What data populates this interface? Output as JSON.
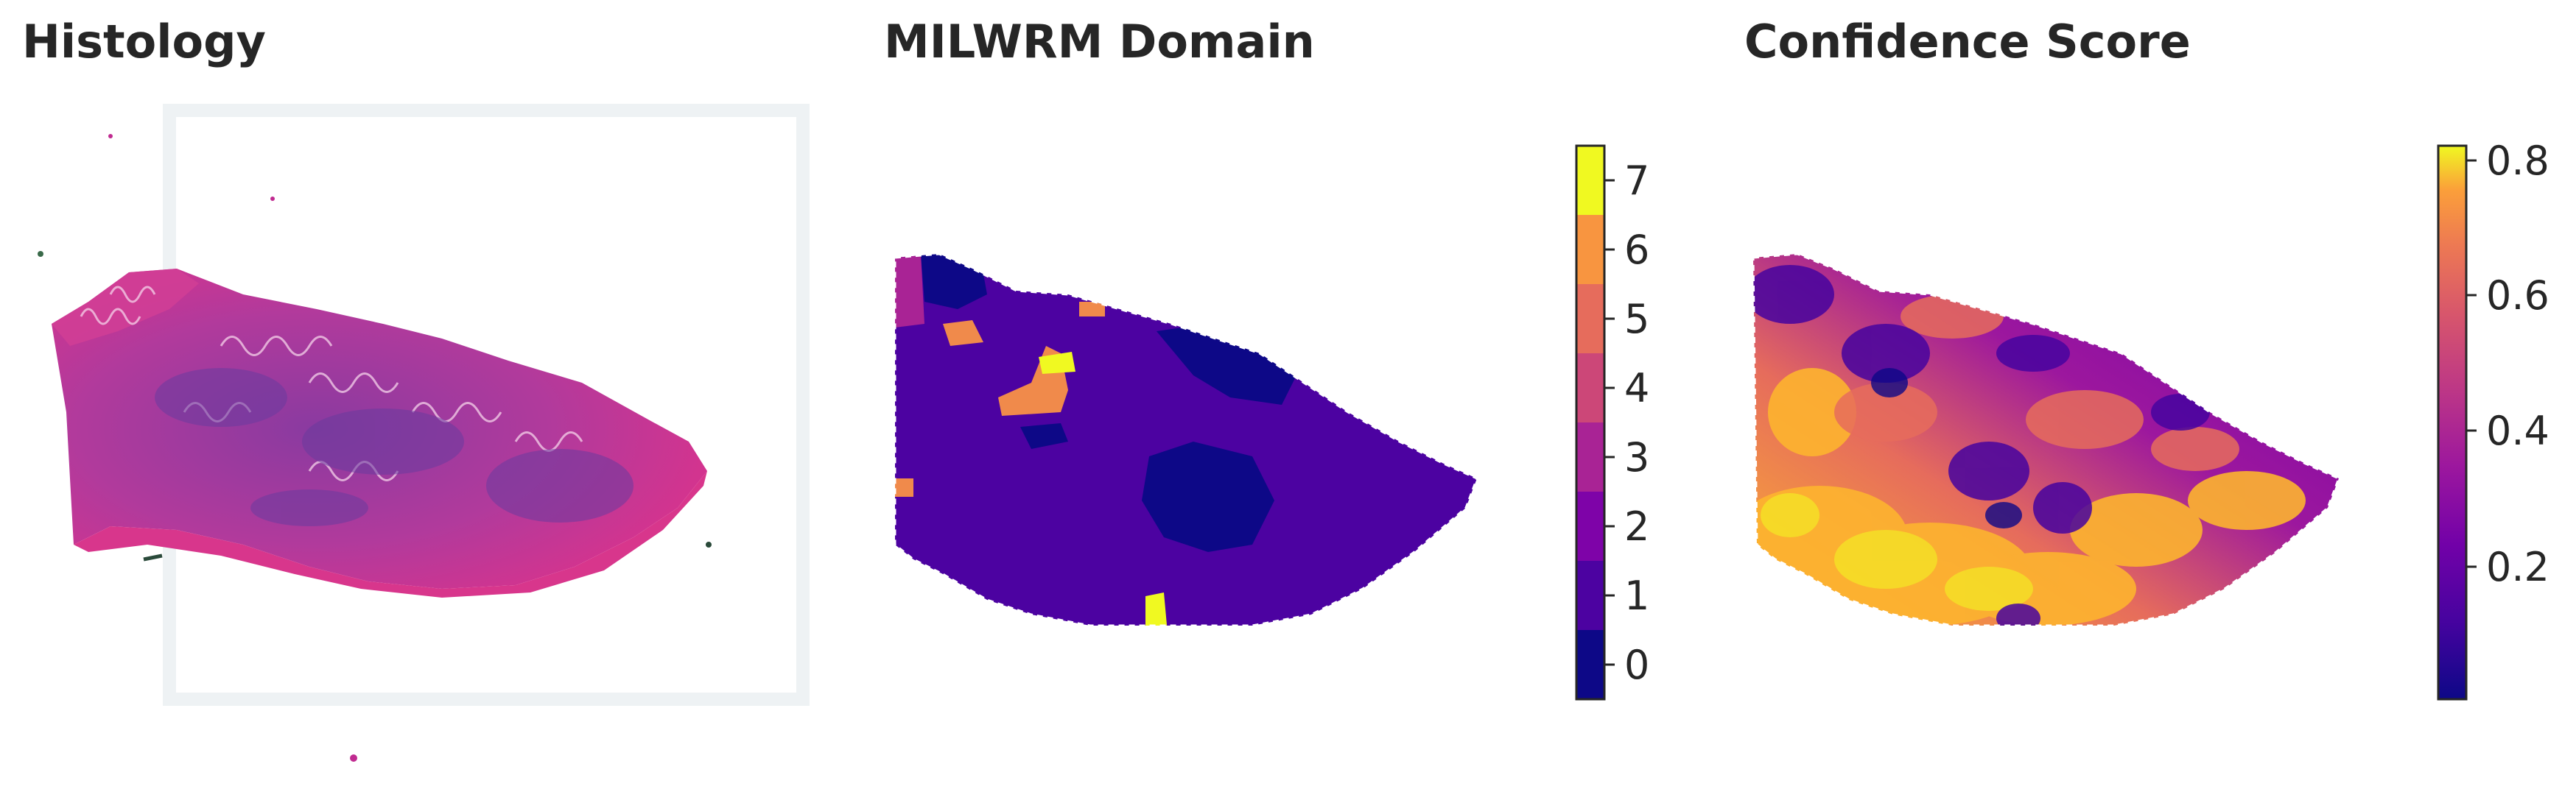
{
  "panels": {
    "histology": {
      "title": "Histology"
    },
    "domain": {
      "title": "MILWRM Domain",
      "colorbar": {
        "ticks": [
          "0",
          "1",
          "2",
          "3",
          "4",
          "5",
          "6",
          "7"
        ],
        "colors": [
          "#0d0887",
          "#4c02a1",
          "#7e03a8",
          "#a92395",
          "#cc4778",
          "#e66c5c",
          "#f89540",
          "#f0f921"
        ]
      }
    },
    "confidence": {
      "title": "Confidence Score",
      "colorbar": {
        "ticks": [
          "0.2",
          "0.4",
          "0.6",
          "0.8"
        ],
        "colormap": "plasma"
      }
    }
  },
  "colors": {
    "tissue_pink": "#c02a90",
    "tissue_purple": "#8a3aa0",
    "domain_background": "#4c02a1",
    "domain_dark": "#0d0887",
    "domain_orange": "#f08a4b",
    "domain_yellow": "#f0f921"
  }
}
